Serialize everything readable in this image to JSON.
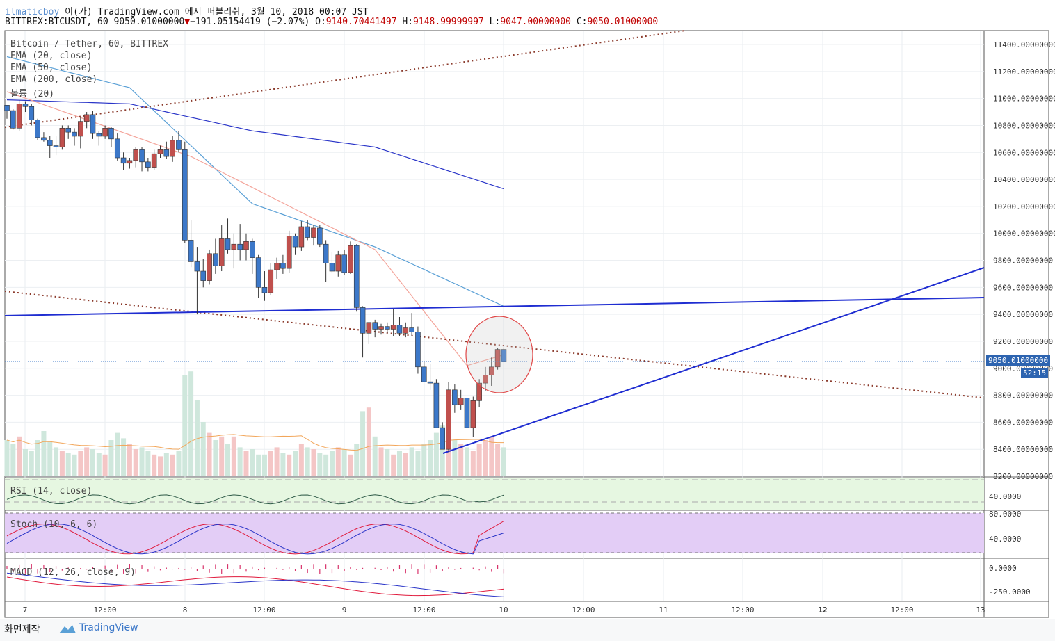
{
  "header": {
    "user": "ilmaticboy",
    "publish_text": "이(가) TradingView.com 에서 퍼블리쉬, 3월 10, 2018 00:07 JST",
    "symbol_line": "BITTREX:BTCUSDT, 60 9050.01000000",
    "change_text": "−191.05154419 (−2.07%)",
    "o_label": "O:",
    "o_value": "9140.70441497",
    "h_label": "H:",
    "h_value": "9148.99999997",
    "l_label": "L:",
    "l_value": "9047.00000000",
    "c_label": "C:",
    "c_value": "9050.01000000"
  },
  "legends": {
    "title": "Bitcoin / Tether, 60, BITTREX",
    "ema20": "EMA (20, close)",
    "ema50": "EMA (50, close)",
    "ema200": "EMA (200, close)",
    "volume": "볼륨 (20)",
    "rsi": "RSI (14, close)",
    "stoch": "Stoch (10, 6, 6)",
    "macd": "MACD (12, 26, close, 9)"
  },
  "price_tag": {
    "value": "9050.01000000",
    "countdown": "52:15"
  },
  "footer": {
    "credit": "화면제작",
    "brand": "TradingView"
  },
  "colors": {
    "up": "#c0504d",
    "down": "#3c78c9",
    "ema20": "#f4a49a",
    "ema50": "#5aa0d6",
    "ema200": "#2a35c8",
    "trend": "#1f2dd1",
    "dotted": "#8b3a2b",
    "rsi_bg": "#e6f7e1",
    "stoch_bg": "#e3cdf6"
  },
  "chart_data": {
    "type": "candlestick",
    "symbol": "BITTREX:BTCUSDT",
    "interval": "60",
    "ylim": [
      8200,
      11500
    ],
    "y_ticks": [
      "11400.00000000",
      "11200.00000000",
      "11000.00000000",
      "10800.00000000",
      "10600.00000000",
      "10400.00000000",
      "10200.00000000",
      "10000.00000000",
      "9800.00000000",
      "9600.00000000",
      "9400.00000000",
      "9200.00000000",
      "9000.00000000",
      "8800.00000000",
      "8600.00000000",
      "8400.00000000",
      "8200.00000000"
    ],
    "x_ticks": [
      "7",
      "12:00",
      "8",
      "12:00",
      "9",
      "12:00",
      "10",
      "12:00",
      "11",
      "12:00",
      "12",
      "12:00",
      "13"
    ],
    "candles": [
      [
        10950,
        10950,
        10850,
        10910
      ],
      [
        10910,
        10920,
        10770,
        10780
      ],
      [
        10780,
        10990,
        10760,
        10960
      ],
      [
        10960,
        10980,
        10900,
        10940
      ],
      [
        10940,
        10960,
        10800,
        10840
      ],
      [
        10840,
        10850,
        10690,
        10710
      ],
      [
        10710,
        10750,
        10680,
        10690
      ],
      [
        10690,
        10720,
        10560,
        10650
      ],
      [
        10650,
        10720,
        10580,
        10640
      ],
      [
        10640,
        10800,
        10620,
        10780
      ],
      [
        10780,
        10800,
        10700,
        10750
      ],
      [
        10750,
        10780,
        10650,
        10720
      ],
      [
        10720,
        10860,
        10630,
        10830
      ],
      [
        10830,
        10900,
        10780,
        10880
      ],
      [
        10880,
        10910,
        10700,
        10740
      ],
      [
        10740,
        10760,
        10650,
        10720
      ],
      [
        10720,
        10800,
        10700,
        10780
      ],
      [
        10780,
        10790,
        10640,
        10700
      ],
      [
        10700,
        10740,
        10540,
        10560
      ],
      [
        10560,
        10600,
        10470,
        10520
      ],
      [
        10520,
        10560,
        10480,
        10540
      ],
      [
        10540,
        10640,
        10490,
        10620
      ],
      [
        10620,
        10640,
        10460,
        10530
      ],
      [
        10530,
        10560,
        10460,
        10490
      ],
      [
        10490,
        10620,
        10470,
        10590
      ],
      [
        10590,
        10650,
        10560,
        10620
      ],
      [
        10620,
        10680,
        10550,
        10570
      ],
      [
        10570,
        10720,
        10530,
        10690
      ],
      [
        10690,
        10760,
        10600,
        10620
      ],
      [
        10620,
        10680,
        9930,
        9950
      ],
      [
        9950,
        10100,
        9750,
        9790
      ],
      [
        9790,
        9900,
        9400,
        9720
      ],
      [
        9720,
        9810,
        9600,
        9650
      ],
      [
        9650,
        9880,
        9620,
        9850
      ],
      [
        9850,
        9960,
        9700,
        9760
      ],
      [
        9760,
        10060,
        9720,
        9960
      ],
      [
        9960,
        10110,
        9850,
        9880
      ],
      [
        9880,
        10000,
        9740,
        9920
      ],
      [
        9920,
        10070,
        9800,
        9880
      ],
      [
        9880,
        10000,
        9800,
        9940
      ],
      [
        9940,
        9960,
        9700,
        9820
      ],
      [
        9820,
        9840,
        9520,
        9600
      ],
      [
        9600,
        9720,
        9500,
        9560
      ],
      [
        9560,
        9780,
        9540,
        9730
      ],
      [
        9730,
        9820,
        9660,
        9780
      ],
      [
        9780,
        9840,
        9700,
        9740
      ],
      [
        9740,
        10020,
        9710,
        9980
      ],
      [
        9980,
        10000,
        9840,
        9900
      ],
      [
        9900,
        10090,
        9870,
        10050
      ],
      [
        10050,
        10100,
        9950,
        9970
      ],
      [
        9970,
        10060,
        9910,
        10040
      ],
      [
        10040,
        10060,
        9900,
        9920
      ],
      [
        9920,
        9950,
        9640,
        9780
      ],
      [
        9780,
        9860,
        9710,
        9720
      ],
      [
        9720,
        9870,
        9680,
        9840
      ],
      [
        9840,
        9880,
        9690,
        9710
      ],
      [
        9710,
        9940,
        9700,
        9910
      ],
      [
        9910,
        9920,
        9420,
        9450
      ],
      [
        9450,
        9460,
        9080,
        9260
      ],
      [
        9260,
        9330,
        9180,
        9340
      ],
      [
        9340,
        9360,
        9230,
        9290
      ],
      [
        9290,
        9330,
        9250,
        9310
      ],
      [
        9310,
        9340,
        9260,
        9290
      ],
      [
        9290,
        9440,
        9240,
        9320
      ],
      [
        9320,
        9380,
        9240,
        9260
      ],
      [
        9260,
        9340,
        9230,
        9300
      ],
      [
        9300,
        9410,
        9240,
        9270
      ],
      [
        9270,
        9310,
        8960,
        9010
      ],
      [
        9010,
        9050,
        8920,
        8900
      ],
      [
        8900,
        9030,
        8840,
        8890
      ],
      [
        8890,
        8920,
        8560,
        8560
      ],
      [
        8560,
        8600,
        8410,
        8400
      ],
      [
        8400,
        8900,
        8380,
        8840
      ],
      [
        8840,
        8880,
        8670,
        8730
      ],
      [
        8730,
        8840,
        8690,
        8780
      ],
      [
        8780,
        8800,
        8530,
        8560
      ],
      [
        8560,
        8790,
        8490,
        8760
      ],
      [
        8760,
        8920,
        8710,
        8890
      ],
      [
        8890,
        9010,
        8830,
        8950
      ],
      [
        8950,
        9080,
        8870,
        9010
      ],
      [
        9010,
        9150,
        8990,
        9140
      ],
      [
        9140,
        9148.99999997,
        9047,
        9050.01
      ]
    ],
    "volume_data": [
      20,
      18,
      22,
      15,
      14,
      20,
      25,
      19,
      16,
      14,
      13,
      12,
      14,
      16,
      15,
      13,
      12,
      20,
      24,
      21,
      18,
      15,
      16,
      14,
      12,
      11,
      13,
      12,
      14,
      56,
      58,
      42,
      30,
      24,
      20,
      22,
      18,
      22,
      16,
      14,
      15,
      12,
      12,
      14,
      16,
      13,
      12,
      14,
      18,
      16,
      15,
      13,
      12,
      14,
      16,
      15,
      12,
      18,
      36,
      38,
      22,
      16,
      15,
      12,
      14,
      13,
      16,
      14,
      18,
      20,
      24,
      28,
      36,
      20,
      18,
      16,
      14,
      18,
      20,
      22,
      18,
      16
    ],
    "ema20_anchor": [
      [
        0,
        11050
      ],
      [
        30,
        10570
      ],
      [
        60,
        9880
      ],
      [
        75,
        9020
      ],
      [
        81,
        9100
      ]
    ],
    "ema50_anchor": [
      [
        0,
        11310
      ],
      [
        20,
        11080
      ],
      [
        40,
        10220
      ],
      [
        60,
        9900
      ],
      [
        81,
        9460
      ]
    ],
    "ema200_anchor": [
      [
        0,
        10990
      ],
      [
        20,
        10960
      ],
      [
        40,
        10760
      ],
      [
        60,
        10640
      ],
      [
        81,
        10330
      ]
    ],
    "rsi_ylim": [
      0,
      100
    ],
    "rsi_ticks": [
      "40.0000"
    ],
    "stoch_ticks": [
      "80.0000",
      "40.0000"
    ],
    "macd_ticks": [
      "0.0000",
      "-250.0000"
    ],
    "price_line": 9050.01
  }
}
